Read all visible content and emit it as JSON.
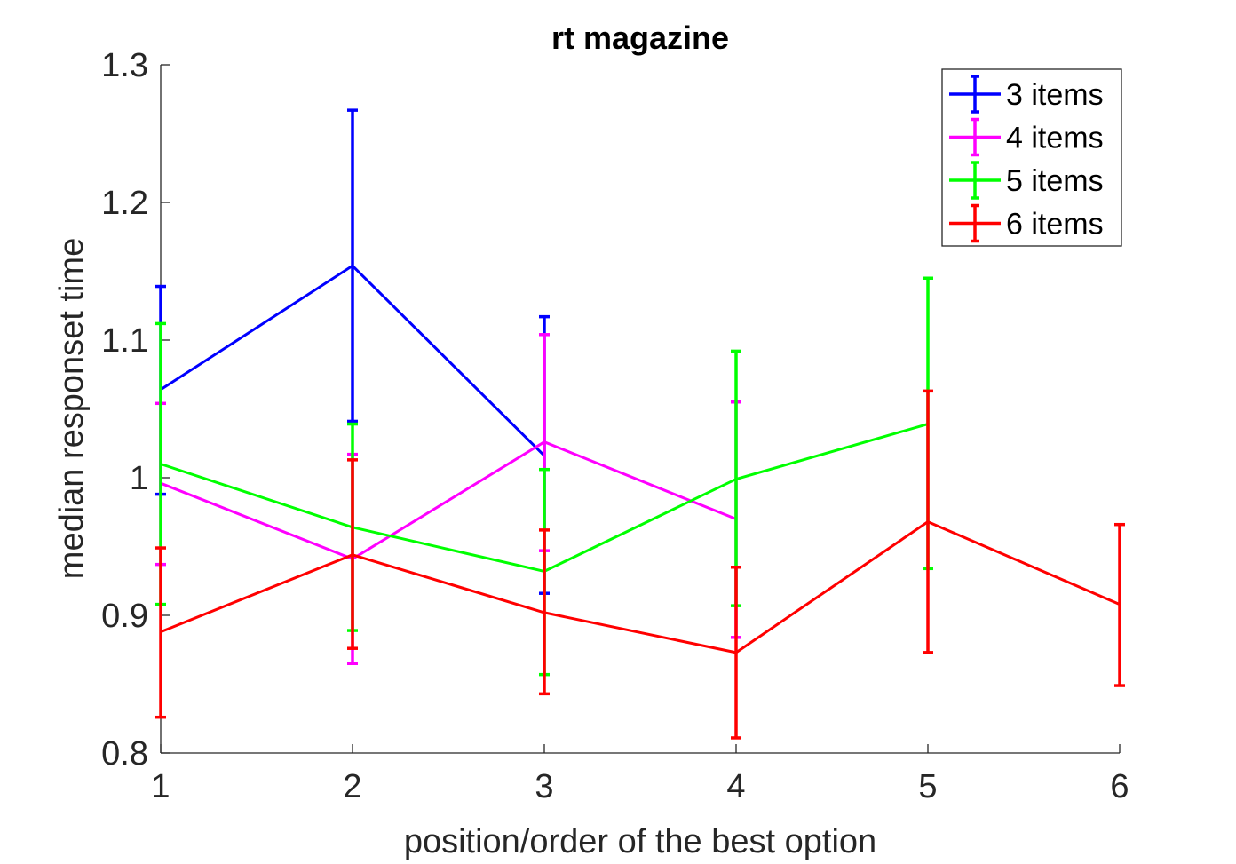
{
  "chart_data": {
    "type": "line",
    "title": "rt magazine",
    "xlabel": "position/order of the best option",
    "ylabel": "median responset time",
    "xlim": [
      1,
      6
    ],
    "ylim": [
      0.8,
      1.3
    ],
    "xticks": [
      "1",
      "2",
      "3",
      "4",
      "5",
      "6"
    ],
    "yticks": [
      "0.8",
      "0.9",
      "1",
      "1.1",
      "1.2",
      "1.3"
    ],
    "grid": false,
    "error_bars": true,
    "legend_position": "top-right",
    "series": [
      {
        "name": "3 items",
        "color": "#0000ff",
        "x": [
          1,
          2,
          3
        ],
        "y": [
          1.064,
          1.154,
          1.016
        ],
        "lower": [
          0.988,
          1.041,
          0.916
        ],
        "upper": [
          1.139,
          1.267,
          1.117
        ]
      },
      {
        "name": "4 items",
        "color": "#ff00ff",
        "x": [
          1,
          2,
          3,
          4
        ],
        "y": [
          0.996,
          0.941,
          1.026,
          0.97
        ],
        "lower": [
          0.937,
          0.865,
          0.947,
          0.884
        ],
        "upper": [
          1.054,
          1.017,
          1.104,
          1.055
        ]
      },
      {
        "name": "5 items",
        "color": "#00ff00",
        "x": [
          1,
          2,
          3,
          4,
          5
        ],
        "y": [
          1.01,
          0.964,
          0.932,
          0.999,
          1.039
        ],
        "lower": [
          0.908,
          0.889,
          0.857,
          0.907,
          0.934
        ],
        "upper": [
          1.112,
          1.039,
          1.006,
          1.092,
          1.145
        ]
      },
      {
        "name": "6 items",
        "color": "#ff0000",
        "x": [
          1,
          2,
          3,
          4,
          5,
          6
        ],
        "y": [
          0.888,
          0.944,
          0.902,
          0.873,
          0.968,
          0.908
        ],
        "lower": [
          0.826,
          0.876,
          0.843,
          0.811,
          0.873,
          0.849
        ],
        "upper": [
          0.949,
          1.013,
          0.962,
          0.935,
          1.063,
          0.966
        ]
      }
    ]
  }
}
